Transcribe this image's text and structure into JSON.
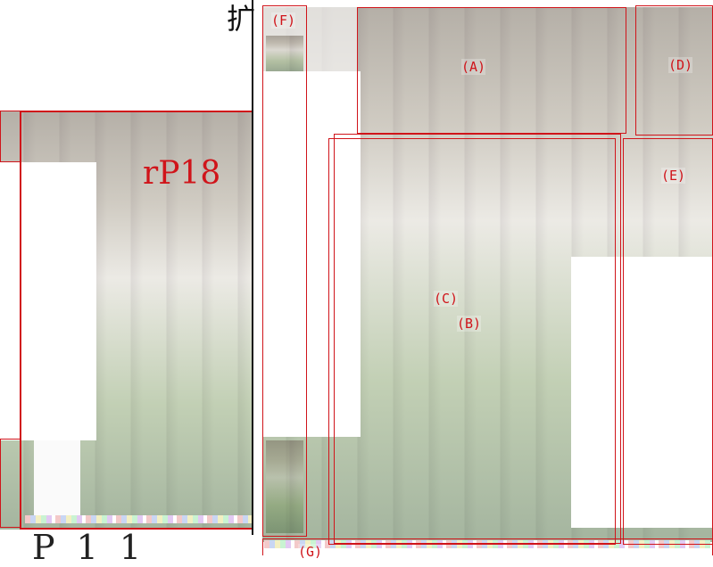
{
  "left_panel": {
    "label": "rP18",
    "bottom_text": "P 1 1"
  },
  "top_glyph": "扩",
  "regions": [
    {
      "id": "A",
      "label": "(A)"
    },
    {
      "id": "B",
      "label": "(B)"
    },
    {
      "id": "C",
      "label": "(C)"
    },
    {
      "id": "D",
      "label": "(D)"
    },
    {
      "id": "E",
      "label": "(E)"
    },
    {
      "id": "F",
      "label": "(F)"
    },
    {
      "id": "G",
      "label": "(G)"
    }
  ],
  "colors": {
    "box_outline": "#d0141a",
    "divider": "#111111"
  }
}
